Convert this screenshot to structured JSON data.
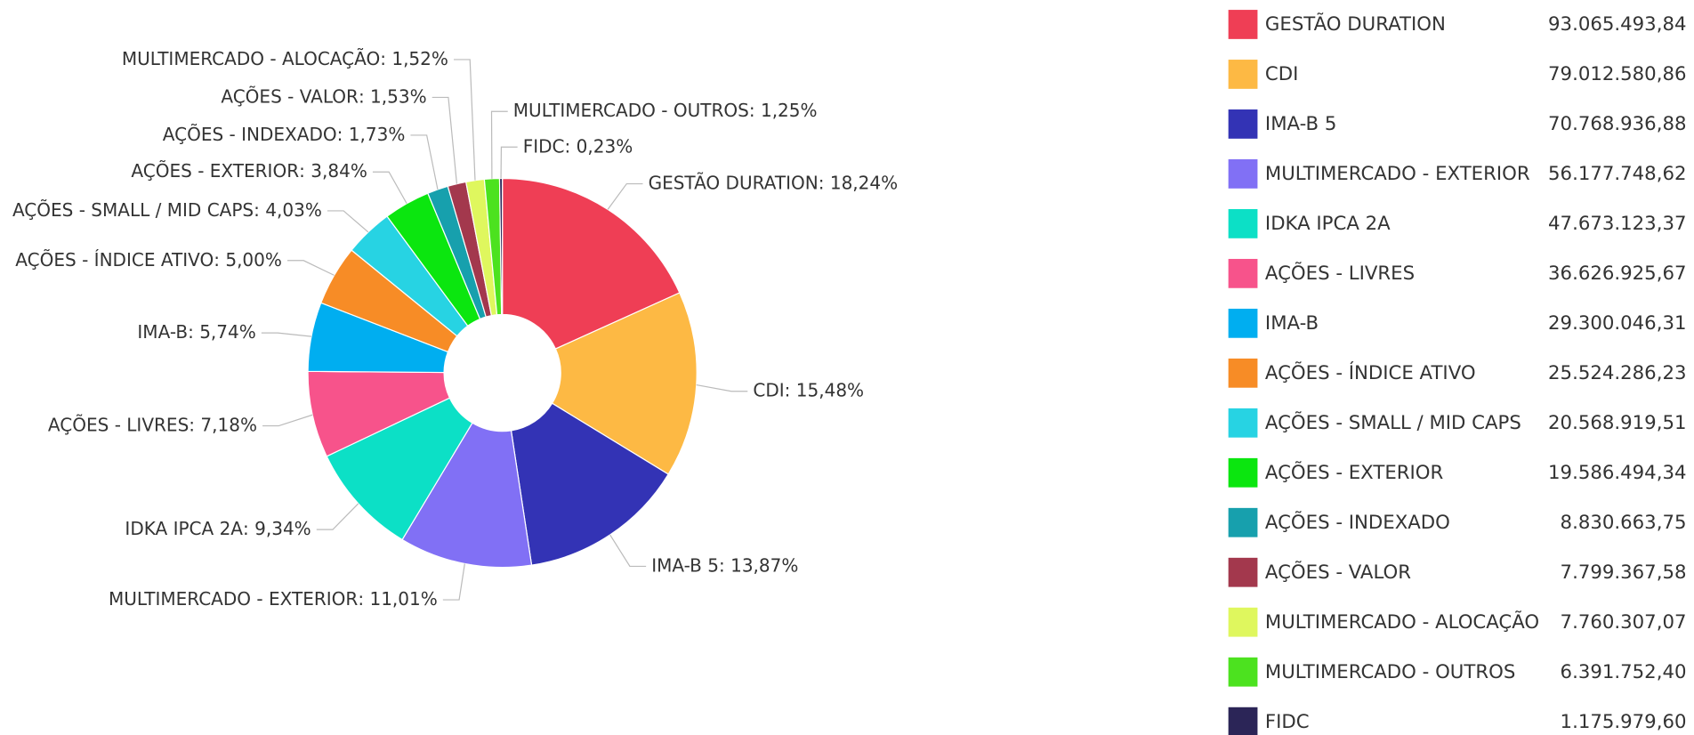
{
  "chart_data": {
    "type": "donut",
    "categories": [
      "GESTÃO DURATION",
      "CDI",
      "IMA-B 5",
      "MULTIMERCADO - EXTERIOR",
      "IDKA IPCA 2A",
      "AÇÕES - LIVRES",
      "IMA-B",
      "AÇÕES - ÍNDICE ATIVO",
      "AÇÕES - SMALL / MID CAPS",
      "AÇÕES - EXTERIOR",
      "AÇÕES - INDEXADO",
      "AÇÕES - VALOR",
      "MULTIMERCADO - ALOCAÇÃO",
      "MULTIMERCADO - OUTROS",
      "FIDC"
    ],
    "values": [
      18.24,
      15.48,
      13.87,
      11.01,
      9.34,
      7.18,
      5.74,
      5.0,
      4.03,
      3.84,
      1.73,
      1.53,
      1.52,
      1.25,
      0.23
    ],
    "value_labels": [
      "18,24%",
      "15,48%",
      "13,87%",
      "11,01%",
      "9,34%",
      "7,18%",
      "5,74%",
      "5,00%",
      "4,03%",
      "3,84%",
      "1,73%",
      "1,53%",
      "1,52%",
      "1,25%",
      "0,23%"
    ],
    "label_separator": ": ",
    "amount_labels": [
      "93.065.493,84",
      "79.012.580,86",
      "70.768.936,88",
      "56.177.748,62",
      "47.673.123,37",
      "36.626.925,67",
      "29.300.046,31",
      "25.524.286,23",
      "20.568.919,51",
      "19.586.494,34",
      "8.830.663,75",
      "7.799.367,58",
      "7.760.307,07",
      "6.391.752,40",
      "1.175.979,60"
    ],
    "colors": [
      "#ef3e55",
      "#fdb944",
      "#3333b5",
      "#8170f5",
      "#0ce0c6",
      "#f7538b",
      "#00aef0",
      "#f78c26",
      "#27d3e3",
      "#0be60f",
      "#17a0ad",
      "#a3384d",
      "#dff75e",
      "#4ce21f",
      "#2b2557"
    ]
  }
}
